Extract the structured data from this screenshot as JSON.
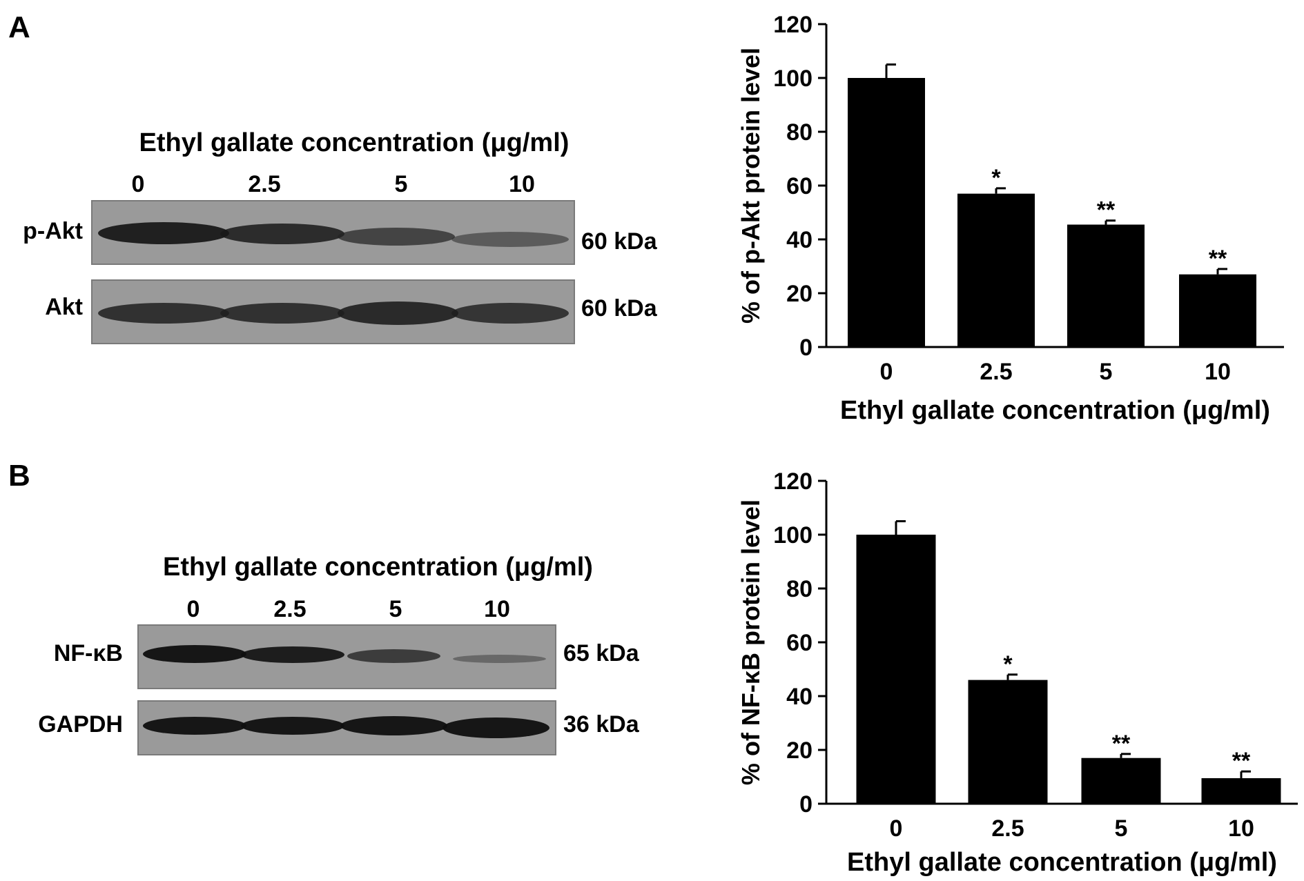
{
  "panels": [
    {
      "letter": "A",
      "blot": {
        "title": "Ethyl gallate concentration (μg/ml)",
        "lanes": [
          "0",
          "2.5",
          "5",
          "10"
        ],
        "rows": [
          {
            "label": "p-Akt",
            "kda": "60 kDa",
            "band_intensity": [
              1.0,
              0.85,
              0.72,
              0.55
            ]
          },
          {
            "label": "Akt",
            "kda": "60 kDa",
            "band_intensity": [
              0.9,
              0.9,
              0.92,
              0.88
            ]
          }
        ]
      }
    },
    {
      "letter": "B",
      "blot": {
        "title": "Ethyl gallate concentration (μg/ml)",
        "lanes": [
          "0",
          "2.5",
          "5",
          "10"
        ],
        "rows": [
          {
            "label": "NF-κB",
            "kda": "65 kDa",
            "band_intensity": [
              1.0,
              0.9,
              0.65,
              0.3
            ]
          },
          {
            "label": "GAPDH",
            "kda": "36 kDa",
            "band_intensity": [
              1.0,
              1.0,
              1.0,
              1.0
            ]
          }
        ]
      }
    }
  ],
  "chart_data": [
    {
      "type": "bar",
      "categories": [
        "0",
        "2.5",
        "5",
        "10"
      ],
      "values": [
        100,
        57,
        45.5,
        27
      ],
      "errors": [
        5,
        2,
        1.5,
        2
      ],
      "significance": [
        "",
        "*",
        "**",
        "**"
      ],
      "xlabel": "Ethyl gallate concentration (μg/ml)",
      "ylabel": "% of p-Akt protein level",
      "ylim": [
        0,
        120
      ],
      "yticks": [
        0,
        20,
        40,
        60,
        80,
        100,
        120
      ],
      "bar_color": "#000000"
    },
    {
      "type": "bar",
      "categories": [
        "0",
        "2.5",
        "5",
        "10"
      ],
      "values": [
        100,
        46,
        17,
        9.5
      ],
      "errors": [
        5,
        2,
        1.5,
        2.5
      ],
      "significance": [
        "",
        "*",
        "**",
        "**"
      ],
      "xlabel": "Ethyl gallate concentration (μg/ml)",
      "ylabel": "% of NF-κB protein level",
      "ylim": [
        0,
        120
      ],
      "yticks": [
        0,
        20,
        40,
        60,
        80,
        100,
        120
      ],
      "bar_color": "#000000"
    }
  ]
}
